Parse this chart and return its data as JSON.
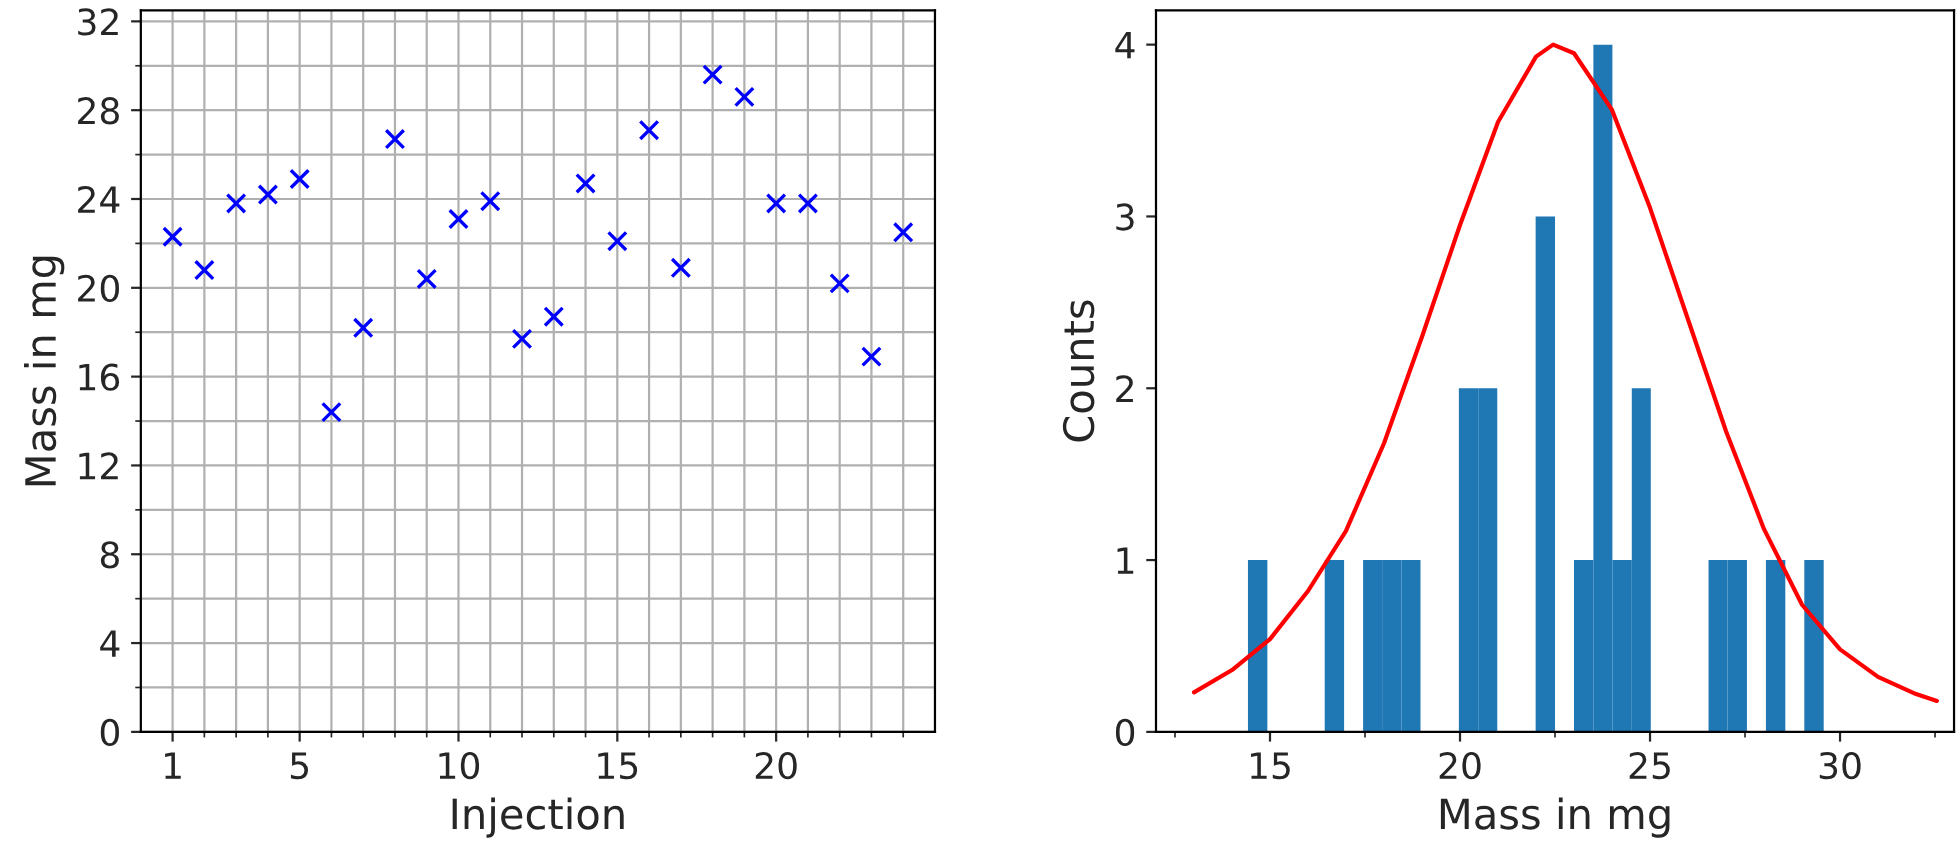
{
  "chart_data": [
    {
      "type": "scatter",
      "xlabel": "Injection",
      "ylabel": "Mass in mg",
      "marker": "cross",
      "grid": true,
      "color": "#0000ff",
      "x": [
        1,
        2,
        3,
        4,
        5,
        6,
        7,
        8,
        9,
        10,
        11,
        12,
        13,
        14,
        15,
        16,
        17,
        18,
        19,
        20,
        21,
        22,
        23,
        24
      ],
      "values": [
        22.3,
        20.8,
        23.8,
        24.2,
        24.9,
        14.4,
        18.2,
        26.7,
        20.4,
        23.1,
        23.9,
        17.7,
        18.7,
        24.7,
        22.1,
        27.1,
        20.9,
        29.6,
        28.6,
        23.8,
        23.8,
        20.2,
        16.9,
        22.5
      ],
      "xlim": [
        0,
        25
      ],
      "xticks": [
        1,
        {
          "value": 2,
          "label": null
        },
        {
          "value": 3,
          "label": null
        },
        {
          "value": 4,
          "label": null
        },
        5,
        {
          "value": 6,
          "label": null
        },
        {
          "value": 7,
          "label": null
        },
        {
          "value": 8,
          "label": null
        },
        {
          "value": 9,
          "label": null
        },
        10,
        {
          "value": 11,
          "label": null
        },
        {
          "value": 12,
          "label": null
        },
        {
          "value": 13,
          "label": null
        },
        {
          "value": 14,
          "label": null
        },
        15,
        {
          "value": 16,
          "label": null
        },
        {
          "value": 17,
          "label": null
        },
        {
          "value": 18,
          "label": null
        },
        {
          "value": 19,
          "label": null
        },
        20,
        {
          "value": 21,
          "label": null
        },
        {
          "value": 22,
          "label": null
        },
        {
          "value": 23,
          "label": null
        },
        {
          "value": 24,
          "label": null
        }
      ],
      "ylim": [
        0,
        32.5
      ],
      "yticks": [
        0,
        {
          "value": 2,
          "label": null
        },
        4,
        {
          "value": 6,
          "label": null
        },
        8,
        {
          "value": 10,
          "label": null
        },
        12,
        {
          "value": 14,
          "label": null
        },
        16,
        {
          "value": 18,
          "label": null
        },
        20,
        {
          "value": 22,
          "label": null
        },
        24,
        {
          "value": 26,
          "label": null
        },
        28,
        {
          "value": 30,
          "label": null
        },
        32
      ]
    },
    {
      "type": "histogram",
      "xlabel": "Mass in mg",
      "ylabel": "Counts",
      "color": "#1f77b4",
      "grid": false,
      "bins": [
        14.42,
        14.93,
        15.43,
        15.94,
        16.44,
        16.95,
        17.45,
        17.95,
        18.46,
        18.96,
        19.47,
        19.97,
        20.48,
        20.98,
        21.49,
        21.99,
        22.5,
        23.0,
        23.51,
        24.01,
        24.52,
        25.02,
        25.53,
        26.03,
        26.54,
        27.04,
        27.55,
        28.05,
        28.56,
        29.06,
        29.57
      ],
      "values": [
        1,
        0,
        0,
        0,
        1,
        0,
        1,
        1,
        1,
        0,
        0,
        2,
        2,
        0,
        0,
        3,
        0,
        1,
        4,
        1,
        2,
        0,
        0,
        0,
        1,
        1,
        0,
        1,
        0,
        1
      ],
      "series": [
        {
          "type": "line",
          "color": "#ff0000",
          "x": [
            13.0,
            14.0,
            15.0,
            16.0,
            17.0,
            18.0,
            19.0,
            20.0,
            21.0,
            22.0,
            22.45,
            23.0,
            24.0,
            25.0,
            26.0,
            27.0,
            28.0,
            29.0,
            30.0,
            31.0,
            32.0,
            32.55
          ],
          "values": [
            0.23,
            0.36,
            0.54,
            0.82,
            1.17,
            1.68,
            2.3,
            2.95,
            3.55,
            3.93,
            4.0,
            3.95,
            3.62,
            3.05,
            2.4,
            1.75,
            1.18,
            0.74,
            0.48,
            0.32,
            0.22,
            0.18
          ]
        }
      ],
      "xlim": [
        12,
        33
      ],
      "xticks": [
        {
          "value": 12.5,
          "label": null
        },
        15,
        {
          "value": 17.5,
          "label": null
        },
        20,
        {
          "value": 22.5,
          "label": null
        },
        25,
        {
          "value": 27.5,
          "label": null
        },
        30,
        {
          "value": 32.5,
          "label": null
        }
      ],
      "ylim": [
        0,
        4.2
      ],
      "yticks": [
        0,
        1,
        2,
        3,
        4
      ]
    }
  ]
}
